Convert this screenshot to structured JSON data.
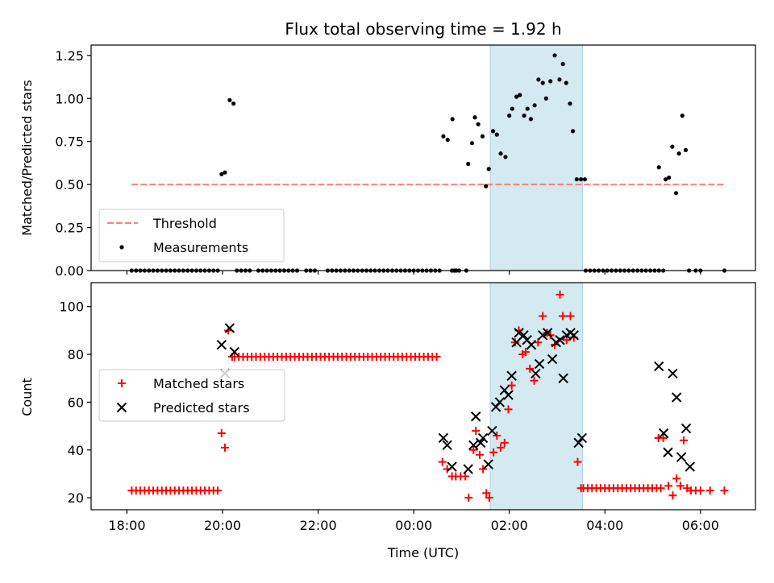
{
  "chart_data": [
    {
      "type": "scatter",
      "title": "Flux total observing time = 1.92 h",
      "xlabel": "",
      "ylabel": "Matched/Predicted stars",
      "xlim": [
        17.25,
        31.15
      ],
      "ylim": [
        0,
        1.31
      ],
      "yticks": [
        0.0,
        0.25,
        0.5,
        0.75,
        1.0,
        1.25
      ],
      "ytick_labels": [
        "0.00",
        "0.25",
        "0.50",
        "0.75",
        "1.00",
        "1.25"
      ],
      "shaded_x_range": [
        25.6,
        27.53
      ],
      "shaded_color": "#d2eaf0",
      "legend": {
        "placement": "lower-left",
        "entries": [
          {
            "label": "Threshold",
            "marker": "dashed-line",
            "color": "#ff7f7f"
          },
          {
            "label": "Measurements",
            "marker": "dot",
            "color": "#000000"
          }
        ]
      },
      "series": [
        {
          "name": "Threshold",
          "kind": "line",
          "style": "dashed",
          "color": "#ff7f7f",
          "x": [
            18.1,
            30.5
          ],
          "y": [
            0.5,
            0.5
          ]
        },
        {
          "name": "Measurements",
          "kind": "scatter",
          "marker": "dot",
          "color": "#000000",
          "zero_x_ranges": [
            [
              18.1,
              19.95
            ],
            [
              20.3,
              20.6
            ],
            [
              20.75,
              21.6
            ],
            [
              21.75,
              22.0
            ],
            [
              22.2,
              24.6
            ],
            [
              24.8,
              24.9
            ],
            [
              27.6,
              29.3
            ]
          ],
          "zero_step": 0.09,
          "zero_points_x": [
            24.85,
            24.95,
            25.1,
            29.9,
            30.0,
            30.5
          ],
          "x": [
            19.98,
            20.05,
            20.15,
            20.23,
            24.62,
            24.71,
            24.81,
            25.14,
            25.22,
            25.28,
            25.35,
            25.44,
            25.51,
            25.57,
            25.66,
            25.74,
            25.82,
            25.92,
            26.0,
            26.06,
            26.15,
            26.22,
            26.31,
            26.38,
            26.45,
            26.53,
            26.61,
            26.7,
            26.77,
            26.86,
            26.95,
            27.05,
            27.12,
            27.19,
            27.27,
            27.33,
            27.41,
            27.5,
            27.58,
            29.13,
            29.27,
            29.34,
            29.41,
            29.49,
            29.55,
            29.62,
            29.69,
            29.76
          ],
          "y": [
            0.56,
            0.57,
            0.99,
            0.97,
            0.78,
            0.76,
            0.88,
            0.62,
            0.74,
            0.89,
            0.85,
            0.78,
            0.49,
            0.59,
            0.81,
            0.79,
            0.68,
            0.66,
            0.9,
            0.94,
            1.01,
            1.02,
            0.9,
            0.94,
            0.88,
            0.96,
            1.11,
            1.09,
            1.0,
            1.1,
            1.25,
            1.11,
            1.2,
            1.09,
            0.97,
            0.81,
            0.53,
            0.53,
            0.53,
            0.6,
            0.53,
            0.54,
            0.72,
            0.45,
            0.68,
            0.9,
            0.7,
            0.0
          ]
        }
      ]
    },
    {
      "type": "scatter",
      "title": "",
      "xlabel": "Time (UTC)",
      "ylabel": "Count",
      "xlim": [
        17.25,
        31.15
      ],
      "ylim": [
        15,
        110
      ],
      "xticks": [
        18,
        20,
        22,
        24,
        26,
        28,
        30
      ],
      "xtick_labels": [
        "18:00",
        "20:00",
        "22:00",
        "00:00",
        "02:00",
        "04:00",
        "06:00"
      ],
      "yticks": [
        20,
        40,
        60,
        80,
        100
      ],
      "ytick_labels": [
        "20",
        "40",
        "60",
        "80",
        "100"
      ],
      "shaded_x_range": [
        25.6,
        27.53
      ],
      "shaded_color": "#d2eaf0",
      "legend": {
        "placement": "center-left",
        "entries": [
          {
            "label": "Matched stars",
            "marker": "plus",
            "color": "#ff0000"
          },
          {
            "label": "Predicted stars",
            "marker": "x",
            "color": "#000000"
          }
        ]
      },
      "series": [
        {
          "name": "Matched stars",
          "kind": "scatter",
          "marker": "plus",
          "color": "#ff0000",
          "runs": [
            {
              "x_start": 18.1,
              "x_end": 19.9,
              "y": 23
            },
            {
              "x_start": 20.25,
              "x_end": 24.55,
              "y": 79
            },
            {
              "x_start": 27.55,
              "x_end": 29.25,
              "y": 24
            }
          ],
          "run_step": 0.09,
          "x": [
            19.98,
            20.05,
            20.12,
            20.2,
            24.6,
            24.7,
            24.8,
            24.88,
            24.98,
            25.08,
            25.15,
            25.25,
            25.3,
            25.38,
            25.45,
            25.52,
            25.58,
            25.67,
            25.74,
            25.82,
            25.9,
            25.98,
            26.05,
            26.12,
            26.2,
            26.28,
            26.34,
            26.43,
            26.52,
            26.6,
            26.7,
            26.79,
            26.86,
            26.95,
            27.06,
            27.12,
            27.2,
            27.28,
            27.35,
            27.43,
            27.5,
            29.12,
            29.22,
            29.33,
            29.42,
            29.5,
            29.58,
            29.65,
            29.72,
            29.8,
            29.9,
            30.0,
            30.2,
            30.5
          ],
          "y": [
            47,
            41,
            90,
            79,
            35,
            32,
            29,
            29,
            29,
            29,
            20,
            40,
            48,
            38,
            32,
            22,
            20,
            39,
            46,
            41,
            43,
            57,
            67,
            85,
            90,
            80,
            81,
            74,
            69,
            85,
            96,
            89,
            88,
            84,
            105,
            96,
            86,
            96,
            87,
            35,
            24,
            45,
            45,
            25,
            21,
            28,
            25,
            44,
            24,
            23,
            23,
            23,
            23,
            23
          ]
        },
        {
          "name": "Predicted stars",
          "kind": "scatter",
          "marker": "x",
          "color": "#000000",
          "x": [
            19.98,
            20.05,
            20.15,
            20.25,
            24.62,
            24.7,
            24.8,
            25.14,
            25.25,
            25.3,
            25.4,
            25.45,
            25.56,
            25.64,
            25.72,
            25.8,
            25.9,
            25.98,
            26.05,
            26.15,
            26.2,
            26.3,
            26.37,
            26.46,
            26.55,
            26.63,
            26.7,
            26.8,
            26.9,
            26.98,
            27.06,
            27.13,
            27.2,
            27.28,
            27.35,
            27.45,
            27.52,
            29.13,
            29.23,
            29.32,
            29.42,
            29.5,
            29.6,
            29.7,
            29.78
          ],
          "y": [
            84,
            72,
            91,
            81,
            45,
            42,
            33,
            32,
            42,
            54,
            43,
            45,
            34,
            48,
            58,
            60,
            65,
            63,
            71,
            85,
            89,
            88,
            86,
            84,
            72,
            76,
            88,
            89,
            78,
            85,
            86,
            70,
            88,
            89,
            88,
            43,
            45,
            75,
            47,
            39,
            72,
            62,
            37,
            49,
            33
          ]
        }
      ]
    }
  ]
}
